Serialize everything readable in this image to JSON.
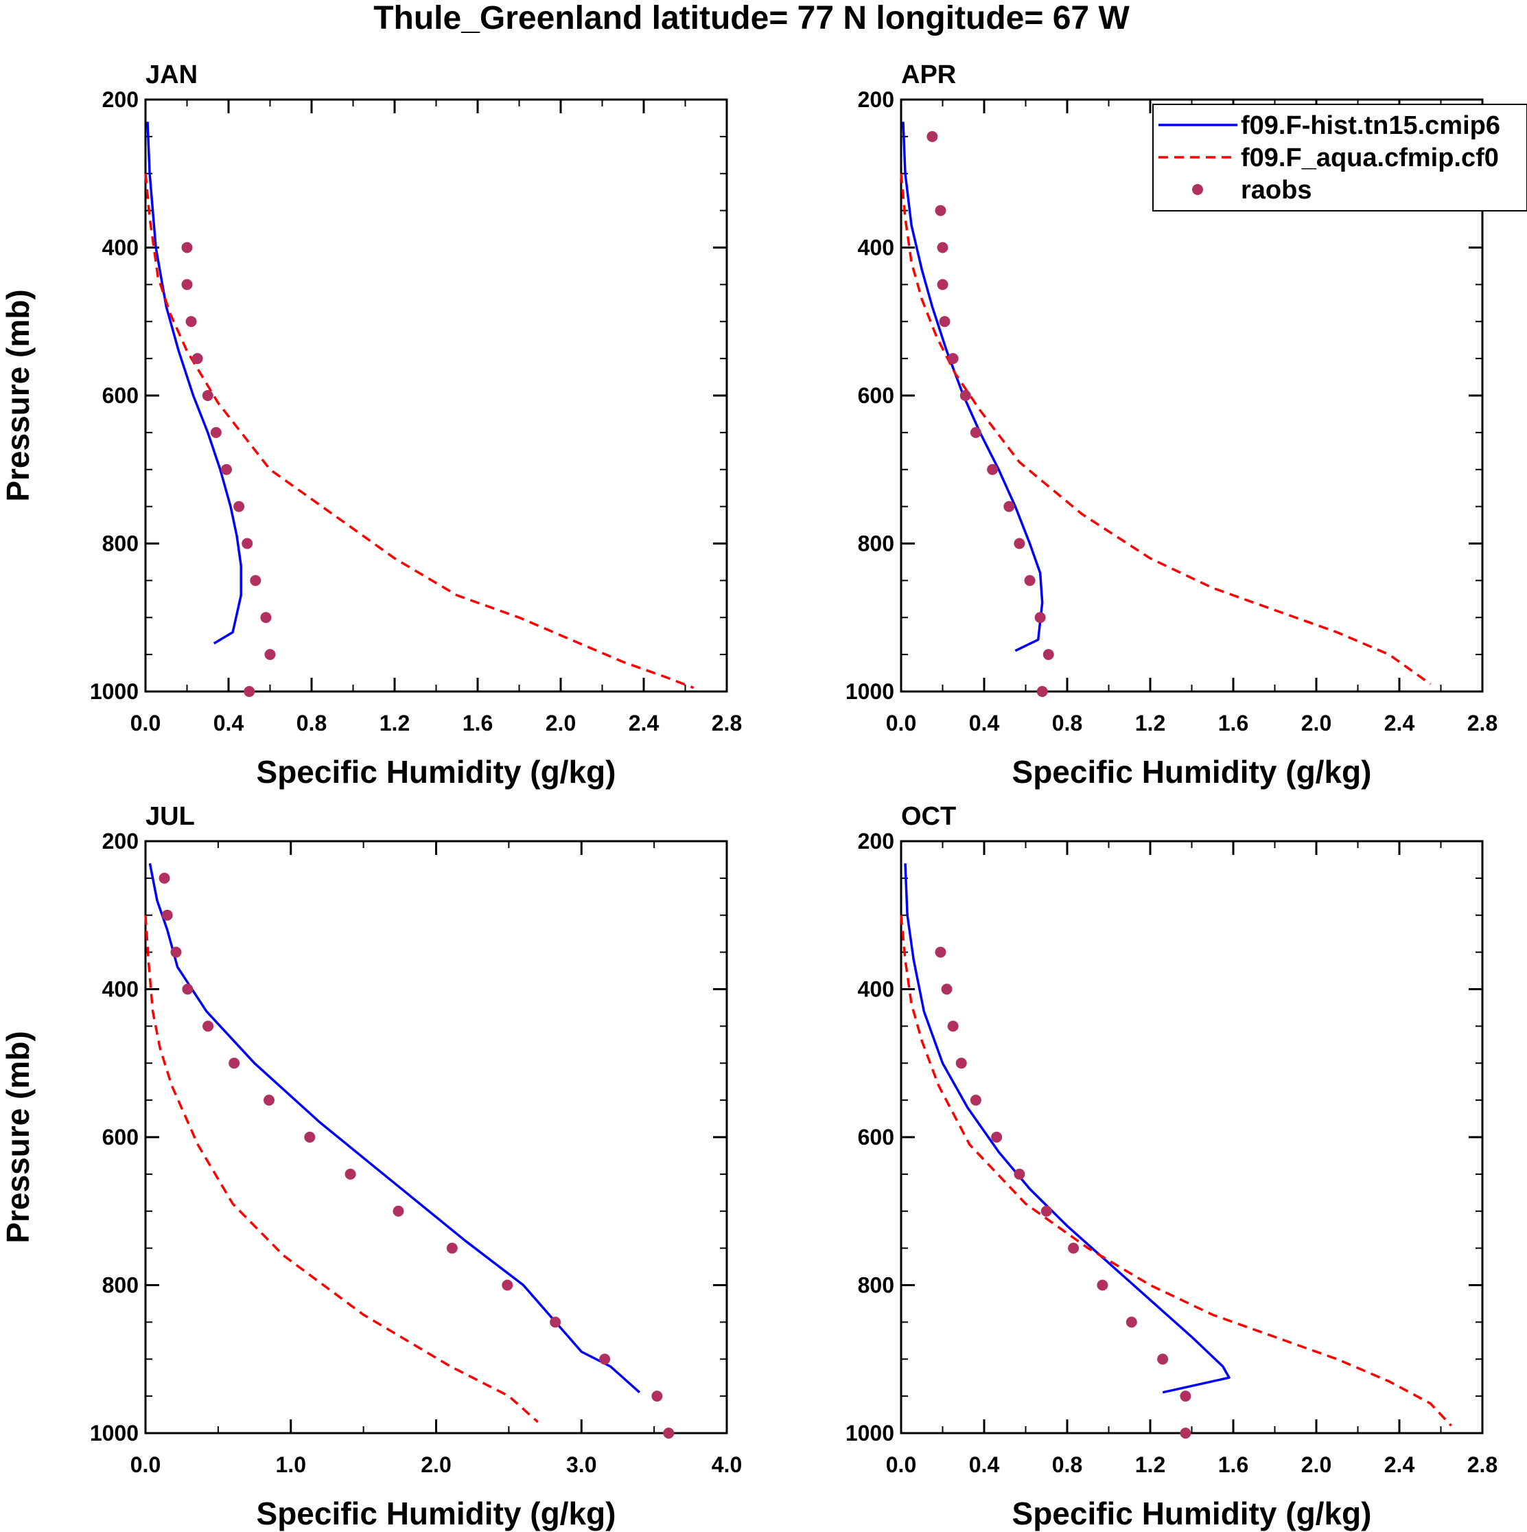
{
  "title": "Thule_Greenland  latitude= 77 N longitude= 67 W",
  "colors": {
    "model_solid": "#0000ff",
    "model_dashed": "#ff0000",
    "raobs": "#b03060",
    "axis": "#000000"
  },
  "legend": {
    "items": [
      {
        "label": "f09.F-hist.tn15.cmip6",
        "style": "solid"
      },
      {
        "label": "f09.F_aqua.cfmip.cf0",
        "style": "dashed"
      },
      {
        "label": "raobs",
        "style": "marker"
      }
    ]
  },
  "chart_data": [
    {
      "type": "line",
      "title": "JAN",
      "xlabel": "Specific Humidity (g/kg)",
      "ylabel": "Pressure (mb)",
      "xlim": [
        0,
        2.8
      ],
      "ylim": [
        200,
        1000
      ],
      "xticks": [
        "0.0",
        "0.4",
        "0.8",
        "1.2",
        "1.6",
        "2.0",
        "2.4",
        "2.8"
      ],
      "yticks": [
        "200",
        "400",
        "600",
        "800",
        "1000"
      ],
      "series": [
        {
          "name": "f09.F-hist.tn15.cmip6",
          "style": "solid",
          "x": [
            0.01,
            0.02,
            0.05,
            0.1,
            0.16,
            0.23,
            0.3,
            0.36,
            0.41,
            0.44,
            0.46,
            0.46,
            0.42,
            0.33
          ],
          "p": [
            230,
            300,
            400,
            480,
            540,
            600,
            650,
            700,
            750,
            790,
            830,
            870,
            920,
            935
          ]
        },
        {
          "name": "f09.F_aqua.cfmip.cf0",
          "style": "dashed",
          "x": [
            0.0,
            0.02,
            0.06,
            0.12,
            0.2,
            0.35,
            0.6,
            0.9,
            1.2,
            1.5,
            1.8,
            2.05,
            2.3,
            2.5,
            2.64
          ],
          "p": [
            300,
            360,
            440,
            490,
            540,
            610,
            700,
            760,
            820,
            870,
            900,
            930,
            960,
            980,
            995
          ]
        },
        {
          "name": "raobs",
          "style": "marker",
          "x": [
            0.2,
            0.2,
            0.22,
            0.25,
            0.3,
            0.34,
            0.39,
            0.45,
            0.49,
            0.53,
            0.58,
            0.6,
            0.5
          ],
          "p": [
            400,
            450,
            500,
            550,
            600,
            650,
            700,
            750,
            800,
            850,
            900,
            950,
            1000
          ]
        }
      ]
    },
    {
      "type": "line",
      "title": "APR",
      "xlabel": "Specific Humidity (g/kg)",
      "ylabel": "Pressure (mb)",
      "xlim": [
        0,
        2.8
      ],
      "ylim": [
        200,
        1000
      ],
      "xticks": [
        "0.0",
        "0.4",
        "0.8",
        "1.2",
        "1.6",
        "2.0",
        "2.4",
        "2.8"
      ],
      "yticks": [
        "200",
        "400",
        "600",
        "800",
        "1000"
      ],
      "series": [
        {
          "name": "f09.F-hist.tn15.cmip6",
          "style": "solid",
          "x": [
            0.01,
            0.02,
            0.05,
            0.1,
            0.15,
            0.22,
            0.3,
            0.38,
            0.47,
            0.55,
            0.62,
            0.67,
            0.68,
            0.66,
            0.55
          ],
          "p": [
            230,
            300,
            370,
            430,
            480,
            540,
            600,
            650,
            700,
            750,
            800,
            840,
            880,
            930,
            945
          ]
        },
        {
          "name": "f09.F_aqua.cfmip.cf0",
          "style": "dashed",
          "x": [
            0.0,
            0.02,
            0.05,
            0.1,
            0.17,
            0.26,
            0.38,
            0.57,
            0.87,
            1.2,
            1.5,
            1.8,
            2.1,
            2.35,
            2.55
          ],
          "p": [
            300,
            360,
            420,
            470,
            520,
            570,
            620,
            690,
            760,
            820,
            860,
            890,
            920,
            950,
            990
          ]
        },
        {
          "name": "raobs",
          "style": "marker",
          "x": [
            0.15,
            0.19,
            0.2,
            0.2,
            0.21,
            0.25,
            0.31,
            0.36,
            0.44,
            0.52,
            0.57,
            0.62,
            0.67,
            0.71,
            0.68
          ],
          "p": [
            250,
            350,
            400,
            450,
            500,
            550,
            600,
            650,
            700,
            750,
            800,
            850,
            900,
            950,
            1000
          ]
        }
      ]
    },
    {
      "type": "line",
      "title": "JUL",
      "xlabel": "Specific Humidity (g/kg)",
      "ylabel": "Pressure (mb)",
      "xlim": [
        0,
        4.0
      ],
      "ylim": [
        200,
        1000
      ],
      "xticks": [
        "0.0",
        "1.0",
        "2.0",
        "3.0",
        "4.0"
      ],
      "yticks": [
        "200",
        "400",
        "600",
        "800",
        "1000"
      ],
      "series": [
        {
          "name": "f09.F-hist.tn15.cmip6",
          "style": "solid",
          "x": [
            0.03,
            0.08,
            0.15,
            0.22,
            0.42,
            0.75,
            1.2,
            1.7,
            2.2,
            2.6,
            3.0,
            3.2,
            3.4
          ],
          "p": [
            230,
            280,
            320,
            370,
            430,
            500,
            580,
            660,
            740,
            800,
            890,
            910,
            945
          ]
        },
        {
          "name": "f09.F_aqua.cfmip.cf0",
          "style": "dashed",
          "x": [
            0.0,
            0.02,
            0.05,
            0.1,
            0.18,
            0.36,
            0.6,
            0.95,
            1.5,
            2.1,
            2.5,
            2.7
          ],
          "p": [
            300,
            360,
            430,
            480,
            530,
            610,
            690,
            760,
            840,
            910,
            950,
            985
          ]
        },
        {
          "name": "raobs",
          "style": "marker",
          "x": [
            0.13,
            0.15,
            0.21,
            0.29,
            0.43,
            0.61,
            0.85,
            1.13,
            1.41,
            1.74,
            2.11,
            2.49,
            2.82,
            3.16,
            3.52,
            3.6
          ],
          "p": [
            250,
            300,
            350,
            400,
            450,
            500,
            550,
            600,
            650,
            700,
            750,
            800,
            850,
            900,
            950,
            1000
          ]
        }
      ]
    },
    {
      "type": "line",
      "title": "OCT",
      "xlabel": "Specific Humidity (g/kg)",
      "ylabel": "Pressure (mb)",
      "xlim": [
        0,
        2.8
      ],
      "ylim": [
        200,
        1000
      ],
      "xticks": [
        "0.0",
        "0.4",
        "0.8",
        "1.2",
        "1.6",
        "2.0",
        "2.4",
        "2.8"
      ],
      "yticks": [
        "200",
        "400",
        "600",
        "800",
        "1000"
      ],
      "series": [
        {
          "name": "f09.F-hist.tn15.cmip6",
          "style": "solid",
          "x": [
            0.02,
            0.03,
            0.06,
            0.11,
            0.2,
            0.32,
            0.47,
            0.62,
            0.8,
            1.0,
            1.2,
            1.4,
            1.55,
            1.58,
            1.26
          ],
          "p": [
            230,
            300,
            360,
            430,
            500,
            560,
            620,
            670,
            720,
            770,
            820,
            870,
            910,
            925,
            945
          ]
        },
        {
          "name": "f09.F_aqua.cfmip.cf0",
          "style": "dashed",
          "x": [
            0.0,
            0.02,
            0.05,
            0.1,
            0.18,
            0.33,
            0.6,
            0.9,
            1.2,
            1.5,
            1.8,
            2.1,
            2.35,
            2.55,
            2.65
          ],
          "p": [
            300,
            360,
            420,
            470,
            530,
            610,
            690,
            750,
            800,
            840,
            870,
            900,
            930,
            960,
            990
          ]
        },
        {
          "name": "raobs",
          "style": "marker",
          "x": [
            0.19,
            0.22,
            0.25,
            0.29,
            0.36,
            0.46,
            0.57,
            0.7,
            0.83,
            0.97,
            1.11,
            1.26,
            1.37,
            1.37
          ],
          "p": [
            350,
            400,
            450,
            500,
            550,
            600,
            650,
            700,
            750,
            800,
            850,
            900,
            950,
            1000
          ]
        }
      ]
    }
  ]
}
